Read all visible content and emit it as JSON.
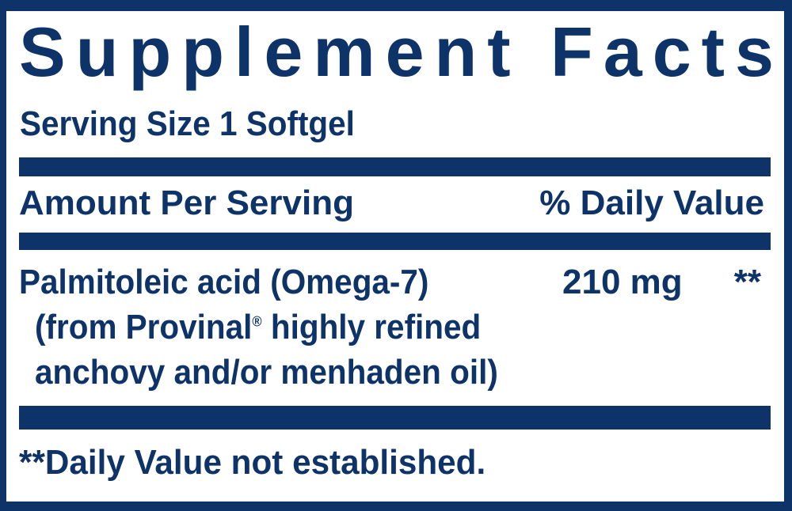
{
  "panel": {
    "title": "Supplement Facts",
    "serving_size": "Serving Size 1 Softgel",
    "header": {
      "amount_col": "Amount Per Serving",
      "dv_col": "% Daily Value"
    },
    "ingredients": [
      {
        "name_line1": "Palmitoleic acid (Omega-7)",
        "name_line2_pre": "(from Provinal",
        "trademark_symbol": "®",
        "name_line2_post": " highly refined",
        "name_line3": "anchovy and/or menhaden oil)",
        "amount": "210 mg",
        "daily_value": "**"
      }
    ],
    "footnote": "**Daily Value not established.",
    "colors": {
      "navy": "#0e3369",
      "background": "#ffffff"
    }
  }
}
